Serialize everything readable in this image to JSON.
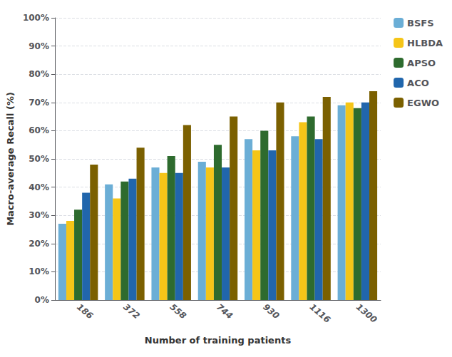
{
  "chart_data": {
    "type": "bar",
    "xlabel": "Number of training patients",
    "ylabel": "Macro-average Recall (%)",
    "categories": [
      "186",
      "372",
      "558",
      "744",
      "930",
      "1116",
      "1300"
    ],
    "series": [
      {
        "name": "BSFS",
        "color": "#6BAED6",
        "values": [
          27,
          41,
          47,
          49,
          57,
          58,
          69
        ]
      },
      {
        "name": "HLBDA",
        "color": "#F5C518",
        "values": [
          28,
          36,
          45,
          47,
          53,
          63,
          70
        ]
      },
      {
        "name": "APSO",
        "color": "#2E6B2E",
        "values": [
          32,
          42,
          51,
          55,
          60,
          65,
          68
        ]
      },
      {
        "name": "ACO",
        "color": "#2166AC",
        "values": [
          38,
          43,
          45,
          47,
          53,
          57,
          70
        ]
      },
      {
        "name": "EGWO",
        "color": "#7B6000",
        "values": [
          48,
          54,
          62,
          65,
          70,
          72,
          74
        ]
      }
    ],
    "ylim": [
      0,
      100
    ],
    "yticks": [
      {
        "value": 0,
        "label": "0%"
      },
      {
        "value": 10,
        "label": "10%"
      },
      {
        "value": 20,
        "label": "20%"
      },
      {
        "value": 30,
        "label": "30%"
      },
      {
        "value": 40,
        "label": "40%"
      },
      {
        "value": 50,
        "label": "50%"
      },
      {
        "value": 60,
        "label": "60%"
      },
      {
        "value": 70,
        "label": "70%"
      },
      {
        "value": 80,
        "label": "80%"
      },
      {
        "value": 90,
        "label": "90%"
      },
      {
        "value": 100,
        "label": "100%"
      }
    ],
    "grid": true,
    "legend": "upper right"
  }
}
